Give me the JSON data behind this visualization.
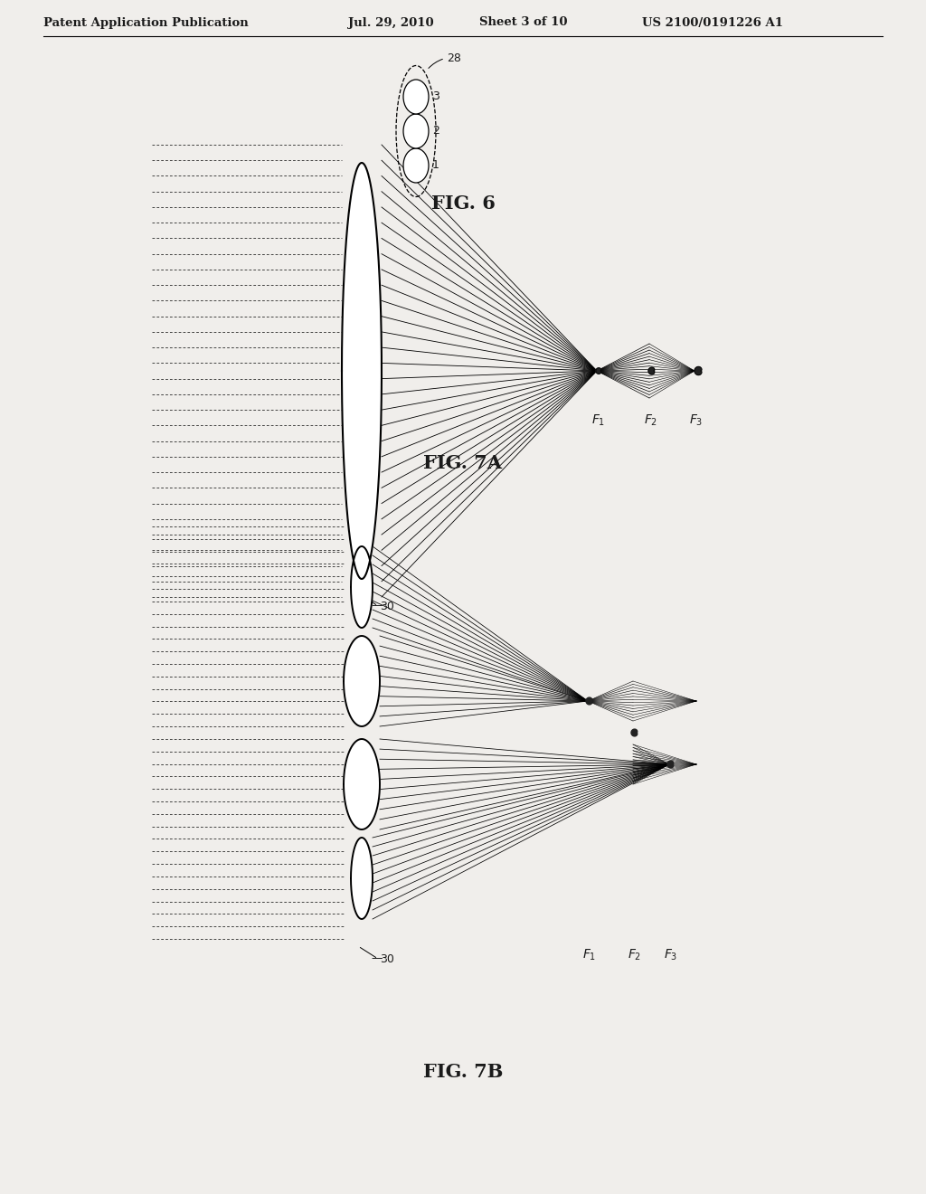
{
  "bg_color": "#f0eeeb",
  "text_color": "#1a1a1a",
  "header_left": "Patent Application Publication",
  "header_mid1": "Jul. 29, 2010",
  "header_mid2": "Sheet 3 of 10",
  "header_right": "US 2100/0191226 A1",
  "fig6_label": "FIG. 6",
  "fig7a_label": "FIG. 7A",
  "fig7b_label": "FIG. 7B"
}
